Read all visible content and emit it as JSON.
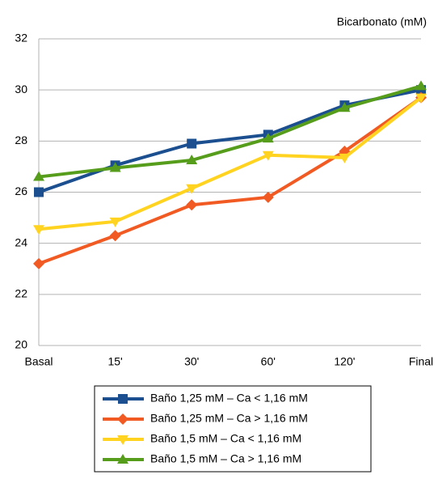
{
  "chart_data": {
    "type": "line",
    "title": "Bicarbonato (mM)",
    "categories": [
      "Basal",
      "15'",
      "30'",
      "60'",
      "120'",
      "Final"
    ],
    "ylim": [
      20,
      32
    ],
    "yticks": [
      20,
      22,
      24,
      26,
      28,
      30,
      32
    ],
    "grid": true,
    "series": [
      {
        "name": "Baño 1,25 mM – Ca < 1,16 mM",
        "color": "#1b4f8f",
        "marker": "square",
        "values": [
          26.0,
          27.05,
          27.9,
          28.25,
          29.4,
          30.0
        ]
      },
      {
        "name": "Baño 1,25 mM – Ca > 1,16 mM",
        "color": "#f15a22",
        "marker": "diamond",
        "values": [
          23.2,
          24.3,
          25.5,
          25.8,
          27.6,
          29.7
        ]
      },
      {
        "name": "Baño 1,5 mM – Ca < 1,16 mM",
        "color": "#ffd320",
        "marker": "triangle-down",
        "values": [
          24.55,
          24.85,
          26.15,
          27.45,
          27.35,
          29.7
        ]
      },
      {
        "name": "Baño 1,5 mM – Ca > 1,16 mM",
        "color": "#579d1c",
        "marker": "triangle-up",
        "values": [
          26.6,
          26.95,
          27.25,
          28.1,
          29.3,
          30.15
        ]
      }
    ]
  }
}
